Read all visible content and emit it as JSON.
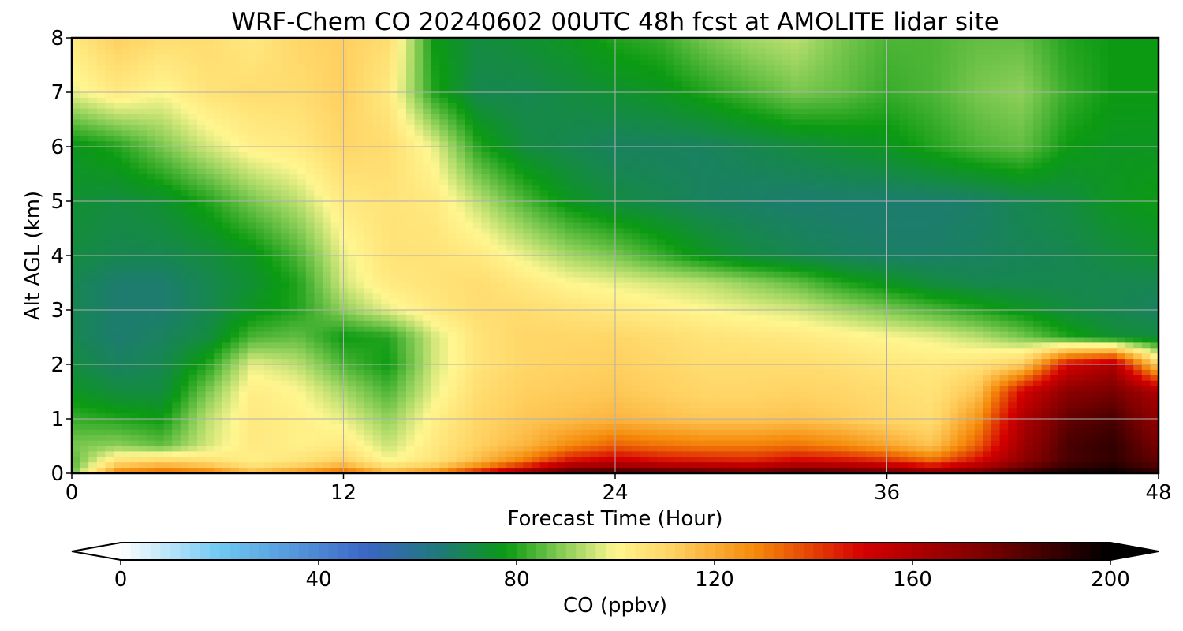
{
  "chart_data": {
    "type": "heatmap",
    "title": "WRF-Chem CO  20240602 00UTC 48h fcst at AMOLITE lidar site",
    "xlabel": "Forecast Time (Hour)",
    "ylabel": "Alt AGL (km)",
    "xlim": [
      0,
      48
    ],
    "ylim": [
      0,
      8
    ],
    "x_ticks": [
      "0",
      "12",
      "24",
      "36",
      "48"
    ],
    "y_ticks": [
      "0",
      "1",
      "2",
      "3",
      "4",
      "5",
      "6",
      "7",
      "8"
    ],
    "grid": true,
    "colorbar": {
      "label": "CO  (ppbv)",
      "range": [
        0,
        200
      ],
      "extend": "both",
      "ticks": [
        "0",
        "40",
        "80",
        "120",
        "160",
        "200"
      ],
      "stops": [
        {
          "v": 0,
          "c": "#ffffff"
        },
        {
          "v": 20,
          "c": "#6fc8f2"
        },
        {
          "v": 50,
          "c": "#3a66c4"
        },
        {
          "v": 65,
          "c": "#1e7a76"
        },
        {
          "v": 78,
          "c": "#0b9a12"
        },
        {
          "v": 90,
          "c": "#8fd05a"
        },
        {
          "v": 100,
          "c": "#fff690"
        },
        {
          "v": 112,
          "c": "#ffd060"
        },
        {
          "v": 128,
          "c": "#f58a0a"
        },
        {
          "v": 150,
          "c": "#d40000"
        },
        {
          "v": 175,
          "c": "#7a0000"
        },
        {
          "v": 200,
          "c": "#000000"
        }
      ]
    },
    "hours": [
      0,
      2,
      4,
      6,
      8,
      10,
      12,
      14,
      16,
      18,
      20,
      22,
      24,
      26,
      28,
      30,
      32,
      34,
      36,
      38,
      40,
      42,
      44,
      46,
      48
    ],
    "altitudes_km": [
      0,
      0.2,
      0.5,
      1,
      1.5,
      2,
      2.5,
      3,
      3.5,
      4,
      5,
      6,
      7,
      8
    ],
    "co_ppbv": [
      [
        86,
        130,
        136,
        132,
        118,
        126,
        136,
        120,
        128,
        148,
        170,
        188,
        190,
        188,
        186,
        182,
        188,
        186,
        182,
        175,
        180,
        190,
        197,
        200,
        190
      ],
      [
        84,
        108,
        112,
        108,
        102,
        106,
        112,
        100,
        106,
        118,
        132,
        150,
        155,
        150,
        148,
        146,
        152,
        150,
        145,
        135,
        150,
        170,
        185,
        190,
        180
      ],
      [
        88,
        90,
        86,
        96,
        104,
        102,
        104,
        95,
        104,
        112,
        118,
        128,
        135,
        132,
        130,
        130,
        132,
        128,
        122,
        115,
        135,
        165,
        185,
        190,
        175
      ],
      [
        82,
        80,
        78,
        94,
        104,
        102,
        98,
        90,
        102,
        110,
        114,
        116,
        118,
        116,
        114,
        114,
        115,
        113,
        110,
        108,
        125,
        160,
        180,
        185,
        168
      ],
      [
        76,
        72,
        72,
        88,
        103,
        100,
        92,
        84,
        98,
        108,
        112,
        113,
        114,
        112,
        110,
        110,
        111,
        110,
        108,
        106,
        115,
        150,
        170,
        175,
        160
      ],
      [
        72,
        68,
        70,
        80,
        98,
        94,
        84,
        78,
        96,
        106,
        110,
        111,
        112,
        110,
        108,
        108,
        108,
        107,
        105,
        104,
        106,
        112,
        150,
        160,
        110
      ],
      [
        70,
        66,
        68,
        72,
        84,
        86,
        78,
        80,
        96,
        106,
        110,
        110,
        110,
        108,
        106,
        105,
        104,
        102,
        100,
        98,
        94,
        88,
        80,
        74,
        72
      ],
      [
        70,
        66,
        66,
        70,
        76,
        80,
        90,
        98,
        104,
        108,
        108,
        106,
        104,
        102,
        100,
        98,
        96,
        92,
        88,
        84,
        80,
        76,
        72,
        70,
        68
      ],
      [
        70,
        66,
        66,
        70,
        74,
        80,
        96,
        104,
        106,
        108,
        104,
        100,
        98,
        96,
        94,
        90,
        86,
        80,
        76,
        72,
        70,
        70,
        70,
        70,
        70
      ],
      [
        72,
        70,
        70,
        72,
        76,
        84,
        98,
        106,
        106,
        104,
        98,
        92,
        88,
        82,
        76,
        72,
        70,
        68,
        67,
        67,
        68,
        69,
        70,
        72,
        74
      ],
      [
        74,
        72,
        74,
        80,
        88,
        94,
        104,
        106,
        104,
        94,
        84,
        76,
        72,
        70,
        68,
        67,
        66,
        66,
        66,
        66,
        67,
        70,
        72,
        76,
        78
      ],
      [
        76,
        80,
        88,
        96,
        102,
        104,
        110,
        108,
        98,
        80,
        72,
        70,
        68,
        68,
        68,
        70,
        72,
        74,
        76,
        80,
        84,
        86,
        78,
        76,
        76
      ],
      [
        98,
        104,
        100,
        106,
        108,
        108,
        112,
        104,
        80,
        70,
        70,
        72,
        74,
        76,
        80,
        84,
        88,
        86,
        82,
        84,
        88,
        90,
        82,
        78,
        78
      ],
      [
        104,
        112,
        108,
        108,
        104,
        110,
        112,
        108,
        78,
        72,
        74,
        76,
        80,
        82,
        88,
        92,
        94,
        88,
        84,
        84,
        86,
        86,
        80,
        78,
        78
      ]
    ]
  }
}
